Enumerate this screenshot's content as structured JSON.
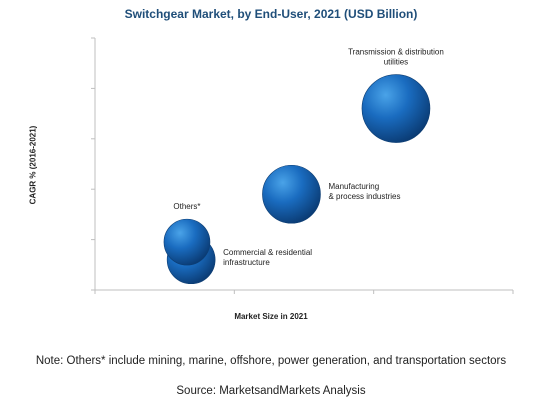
{
  "chart_data": {
    "type": "scatter",
    "title": "Switchgear Market, by End-User, 2021 (USD Billion)",
    "xlabel": "Market Size in 2021",
    "ylabel": "CAGR % (2016-2021)",
    "xlim": [
      0,
      100
    ],
    "ylim": [
      0,
      100
    ],
    "grid": false,
    "note": "Note: Others* include mining, marine, offshore, power generation, and transportation sectors",
    "source": "Source: MarketsandMarkets Analysis",
    "series": [
      {
        "label": "Transmission & distribution utilities",
        "label_lines": [
          "Transmission & distribution",
          "utilities"
        ],
        "x": 72,
        "y": 72,
        "size": 34,
        "color": "#1a5fa8",
        "label_anchor": "above"
      },
      {
        "label": "Manufacturing & process industries",
        "label_lines": [
          "Manufacturing",
          "& process industries"
        ],
        "x": 47,
        "y": 38,
        "size": 29,
        "color": "#1a5fa8",
        "label_anchor": "right"
      },
      {
        "label": "Commercial & residential infrastructure",
        "label_lines": [
          "Commercial & residential",
          "infrastructure"
        ],
        "x": 23,
        "y": 12,
        "size": 24,
        "color": "#1a5fa8",
        "label_anchor": "right"
      },
      {
        "label": "Others*",
        "label_lines": [
          "Others*"
        ],
        "x": 22,
        "y": 19,
        "size": 23,
        "color": "#1a5fa8",
        "label_anchor": "above"
      }
    ]
  }
}
